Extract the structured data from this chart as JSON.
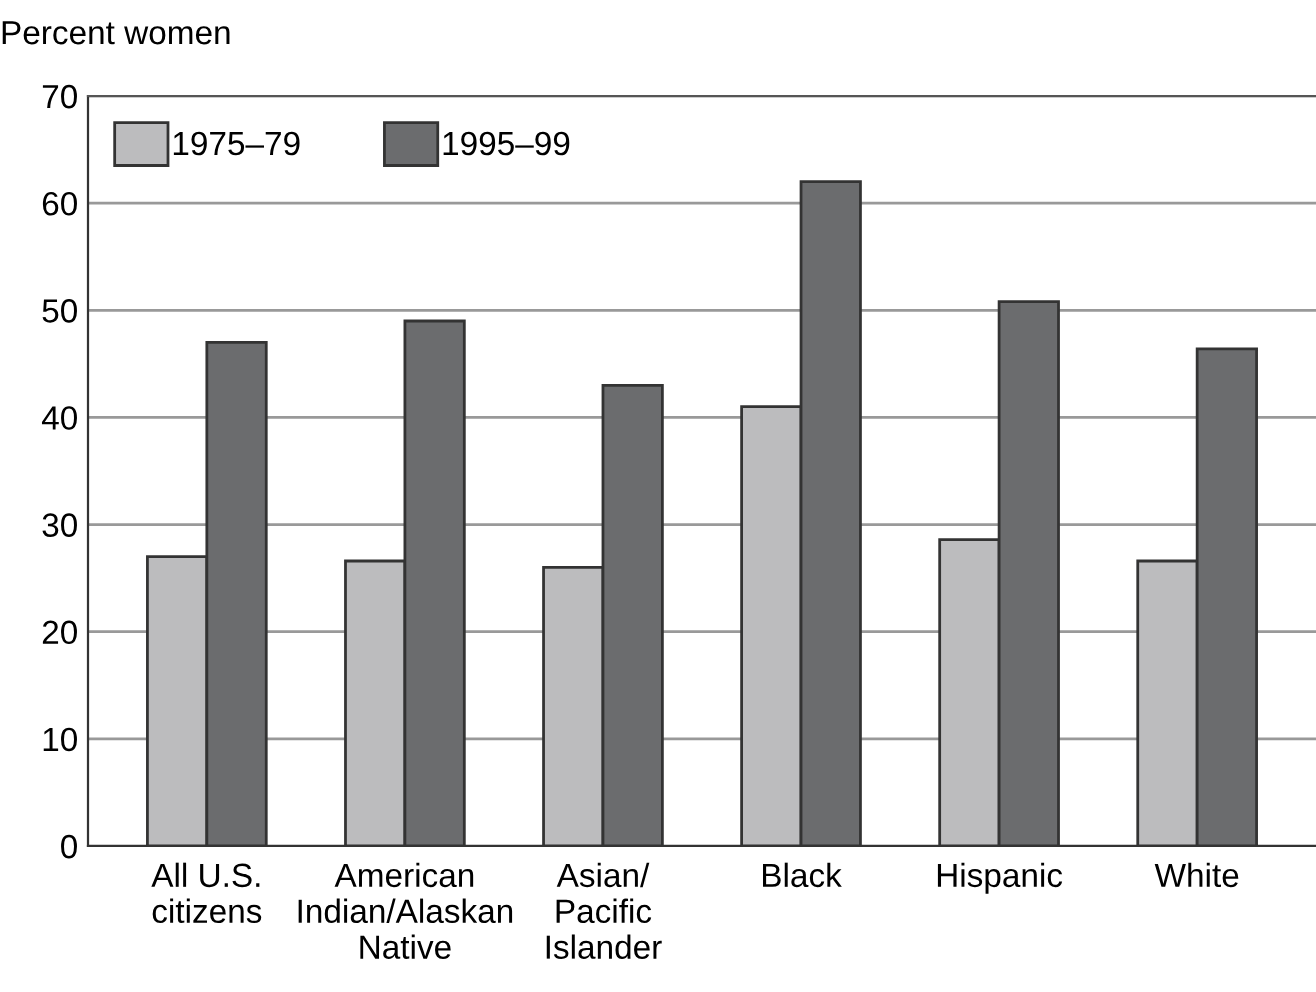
{
  "chart_data": {
    "type": "bar",
    "ylabel": "Percent women",
    "categories": [
      "All U.S.\ncitizens",
      "American\nIndian/Alaskan\nNative",
      "Asian/\nPacific\nIslander",
      "Black",
      "Hispanic",
      "White"
    ],
    "series": [
      {
        "name": "1975–79",
        "color": "#bcbcbe",
        "values": [
          27,
          26.6,
          26,
          41,
          28.6,
          26.6
        ]
      },
      {
        "name": "1995–99",
        "color": "#6b6c6e",
        "values": [
          47,
          49,
          43,
          62,
          50.8,
          46.4
        ]
      }
    ],
    "ylim": [
      0,
      70
    ],
    "yticks": [
      0,
      10,
      20,
      30,
      40,
      50,
      60,
      70
    ],
    "grid": "y",
    "legend": "top left"
  }
}
